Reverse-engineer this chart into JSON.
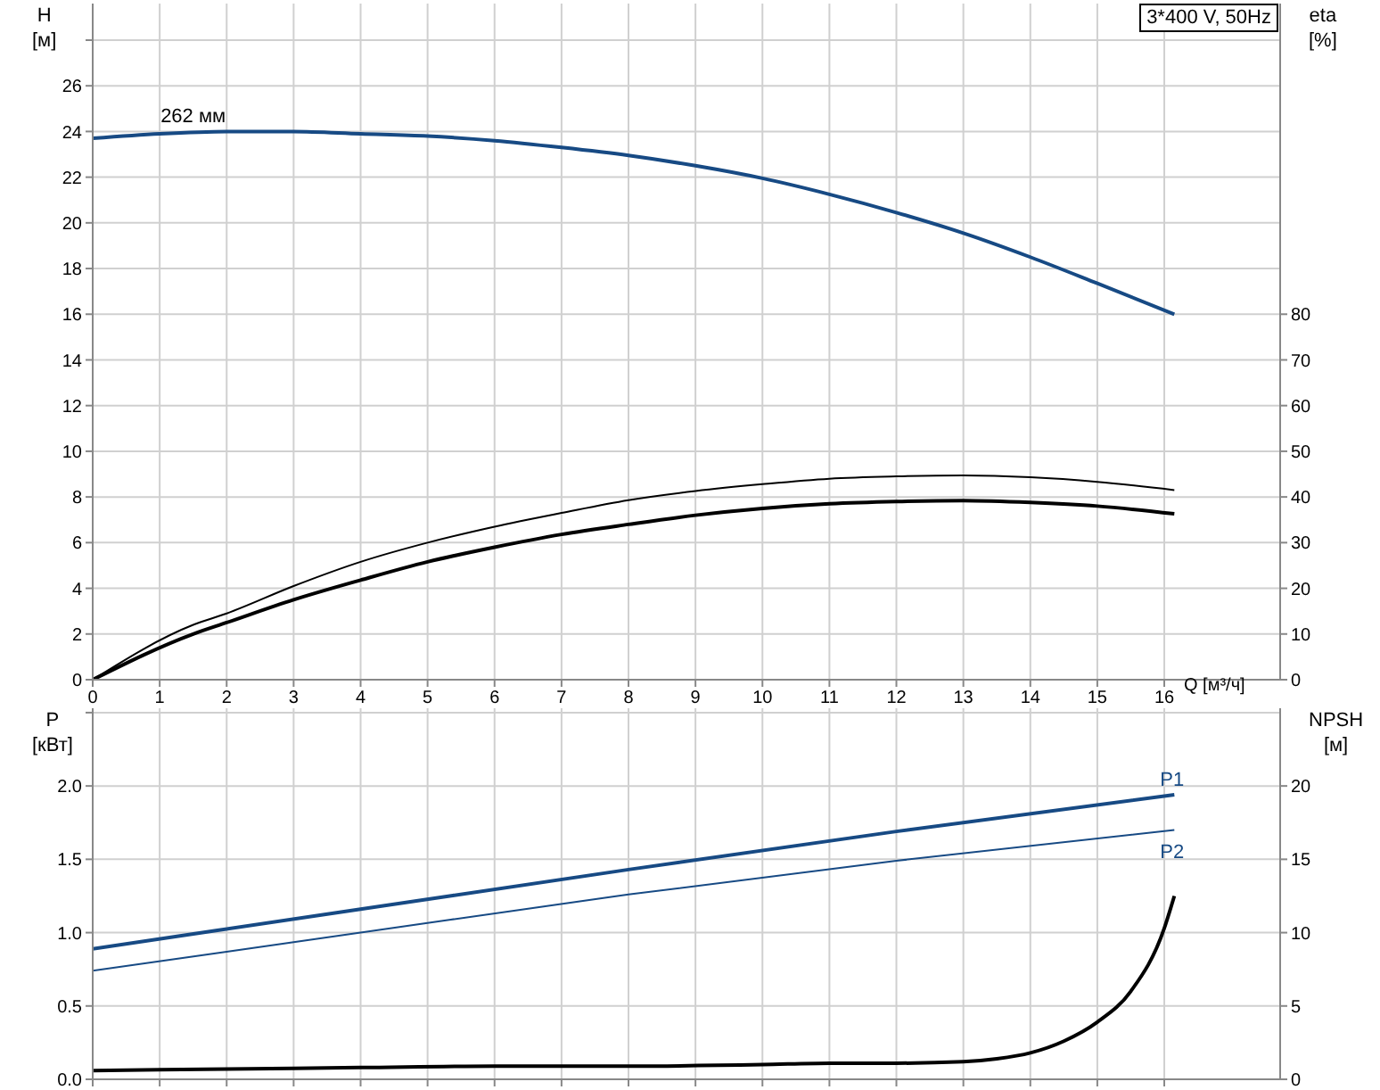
{
  "chart_data": [
    {
      "type": "line",
      "title": "3*400 V, 50Hz",
      "xlabel": "Q [м³/ч]",
      "ylabel": "H\n[м]",
      "y2label": "eta\n[%]",
      "grid": true,
      "marker": "none",
      "line_style": "solid",
      "xlim": [
        0,
        17.73
      ],
      "xticks": [
        0,
        1,
        2,
        3,
        4,
        5,
        6,
        7,
        8,
        9,
        10,
        11,
        12,
        13,
        14,
        15,
        16
      ],
      "ylim": [
        0,
        29.6
      ],
      "yticks": [
        0,
        2,
        4,
        6,
        8,
        10,
        12,
        14,
        16,
        18,
        20,
        22,
        24,
        26,
        {
          "value": 28,
          "label": null
        }
      ],
      "y2lim": [
        0,
        148
      ],
      "y2ticks": [
        0,
        10,
        20,
        30,
        40,
        50,
        60,
        70,
        80
      ],
      "annotations": [
        {
          "text": "262 мм",
          "x": 1.5,
          "y": 24
        }
      ],
      "series": [
        {
          "color": "#174a84",
          "x": [
            0,
            1,
            2,
            3,
            4,
            5,
            6,
            7,
            8,
            9,
            10,
            11,
            12,
            13,
            14,
            15,
            16.15
          ],
          "values": [
            23.7,
            23.9,
            24.0,
            24.0,
            23.9,
            23.8,
            23.6,
            23.3,
            22.95,
            22.5,
            21.95,
            21.25,
            20.45,
            19.55,
            18.5,
            17.35,
            16.0
          ]
        },
        {
          "color": "#000000",
          "axis": "y2",
          "x": [
            0,
            1.5,
            2,
            3,
            4,
            5,
            6,
            7,
            8,
            9,
            10,
            11,
            12,
            13,
            14,
            15,
            16.15
          ],
          "values": [
            0,
            10,
            12.5,
            17.5,
            21.8,
            25.8,
            29,
            31.8,
            34,
            36,
            37.5,
            38.5,
            39,
            39.2,
            38.8,
            38,
            36.3
          ]
        },
        {
          "color": "#000000",
          "axis": "y2",
          "x": [
            0,
            1.5,
            2,
            3,
            4,
            5,
            6,
            7,
            8,
            9,
            10,
            11,
            12,
            13,
            14,
            15,
            16.15
          ],
          "values": [
            0,
            12,
            14.5,
            20.5,
            25.8,
            30,
            33.5,
            36.5,
            39.3,
            41.3,
            42.8,
            44,
            44.5,
            44.7,
            44.3,
            43.3,
            41.5
          ]
        }
      ]
    },
    {
      "type": "line",
      "ylabel": "P\n[кВт]",
      "y2label": "NPSH\n[м]",
      "grid": true,
      "marker": "none",
      "line_style": "solid",
      "tick_labels": "y",
      "xlim": [
        0,
        17.73
      ],
      "xticks": [
        0,
        1,
        2,
        3,
        4,
        5,
        6,
        7,
        8,
        9,
        10,
        11,
        12,
        13,
        14,
        15,
        16
      ],
      "ylim": [
        0,
        2.53
      ],
      "yticks": [
        {
          "value": 0,
          "label": "0.0"
        },
        0.5,
        {
          "value": 1,
          "label": "1.0"
        },
        1.5,
        {
          "value": 2,
          "label": "2.0"
        },
        {
          "value": 2.5,
          "label": null
        }
      ],
      "y2lim": [
        0,
        25.3
      ],
      "y2ticks": [
        0,
        5,
        10,
        15,
        20
      ],
      "series": [
        {
          "name": "P1",
          "color": "#174a84",
          "x": [
            0,
            4,
            8,
            12,
            16.15
          ],
          "values": [
            0.89,
            1.16,
            1.43,
            1.69,
            1.94
          ]
        },
        {
          "name": "P2",
          "color": "#174a84",
          "x": [
            0,
            4,
            8,
            12,
            16.15
          ],
          "values": [
            0.74,
            1.0,
            1.26,
            1.49,
            1.7
          ]
        },
        {
          "color": "#000000",
          "axis": "y2",
          "x": [
            0,
            2,
            4,
            6,
            8,
            10,
            11,
            12,
            13,
            13.5,
            14,
            14.5,
            15,
            15.5,
            16,
            16.15
          ],
          "values": [
            0.6,
            0.7,
            0.8,
            0.9,
            0.9,
            1.0,
            1.1,
            1.1,
            1.2,
            1.4,
            1.8,
            2.6,
            3.9,
            6.0,
            10.3,
            12.5
          ]
        }
      ]
    }
  ]
}
